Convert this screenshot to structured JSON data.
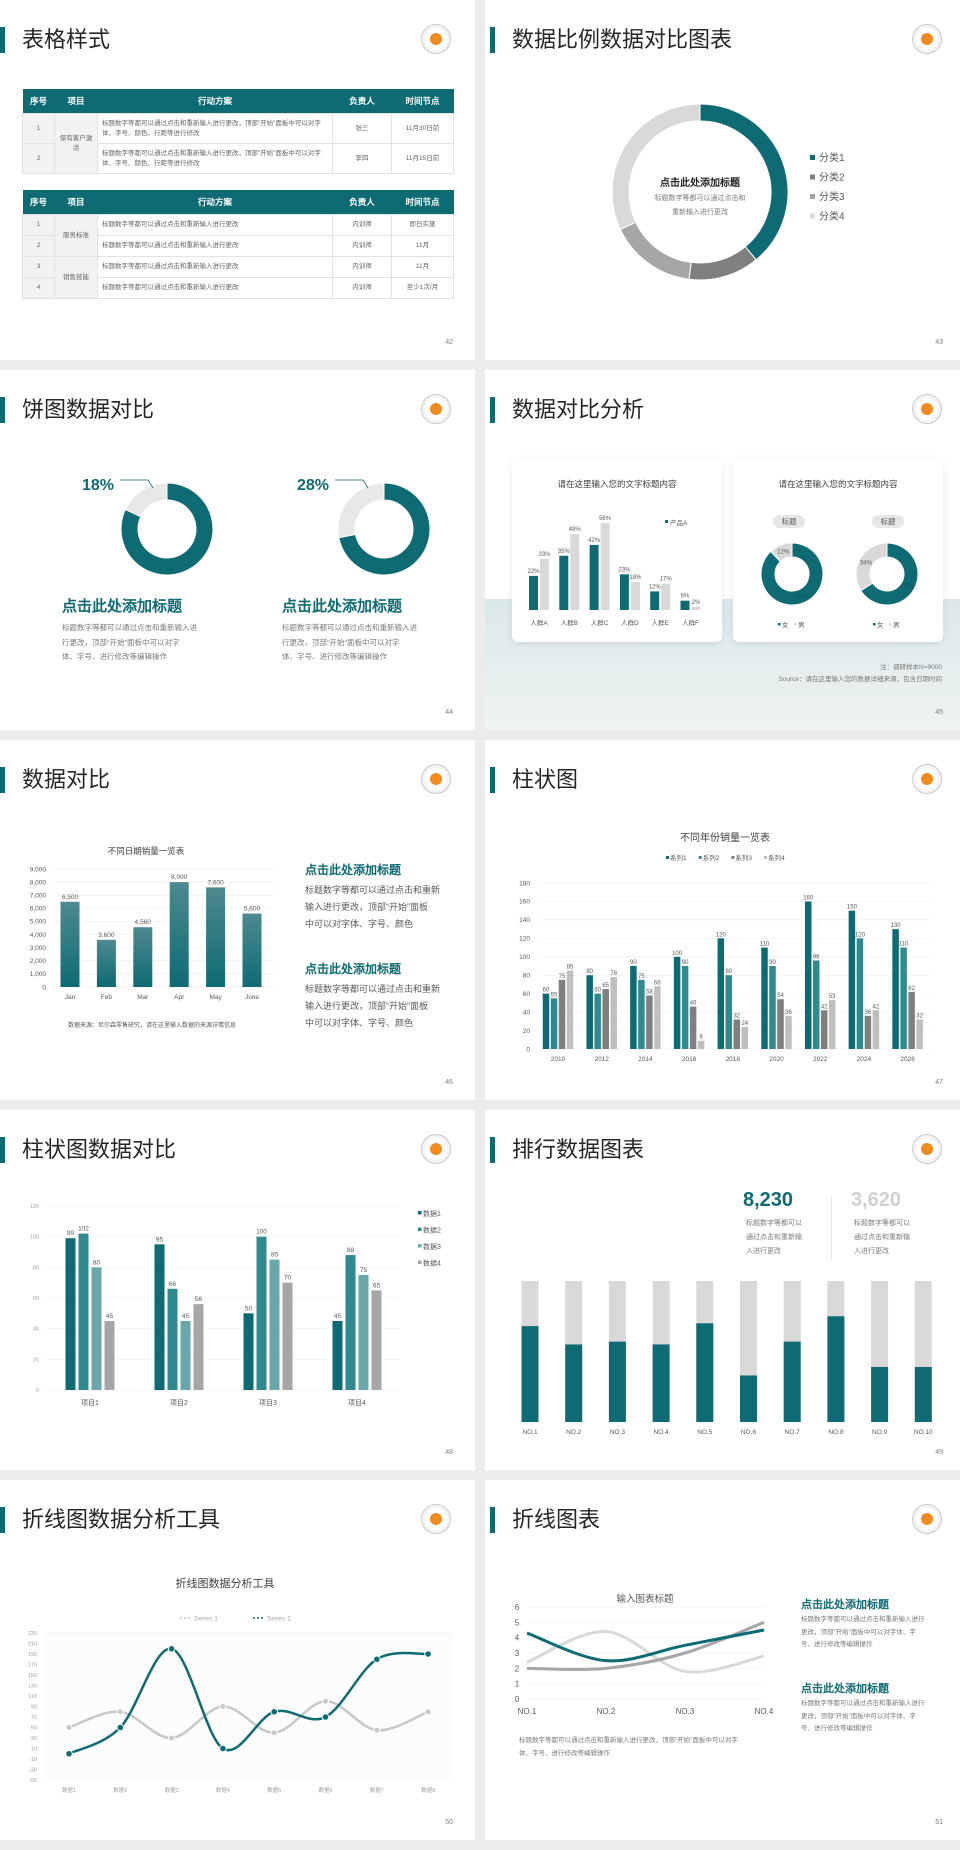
{
  "colors": {
    "teal": "#0e6b73",
    "teal2": "#2f8a90",
    "teal3": "#6aa7ab",
    "gray_dark": "#7f7f7f",
    "gray_mid": "#a6a6a6",
    "gray_light": "#d9d9d9",
    "bg": "#ececec"
  },
  "s42": {
    "title": "表格样式",
    "page": "42",
    "headers": [
      "序号",
      "项目",
      "行动方案",
      "负责人",
      "时间节点"
    ],
    "table1": {
      "group": "保有客户激活",
      "rows": [
        {
          "no": "1",
          "plan": "标题数字等都可以通过点击和重新输入进行更改，顶部“开始”面板中可以对字体、字号、颜色、行距等进行修改",
          "owner": "张三",
          "time": "11月30日前"
        },
        {
          "no": "2",
          "plan": "标题数字等都可以通过点击和重新输入进行更改，顶部“开始”面板中可以对字体、字号、颜色、行距等进行修改",
          "owner": "李四",
          "time": "11月15日前"
        }
      ]
    },
    "table2": {
      "groups": [
        "服务标准",
        "销售技能"
      ],
      "rows": [
        {
          "no": "1",
          "plan": "标题数字等都可以通过点击和重新输入进行更改",
          "owner": "内训师",
          "time": "即日实施"
        },
        {
          "no": "2",
          "plan": "标题数字等都可以通过点击和重新输入进行更改",
          "owner": "内训师",
          "time": "11月"
        },
        {
          "no": "3",
          "plan": "标题数字等都可以通过点击和重新输入进行更改",
          "owner": "内训师",
          "time": "11月"
        },
        {
          "no": "4",
          "plan": "标题数字等都可以通过点击和重新输入进行更改",
          "owner": "内训师",
          "time": "至少1次/月"
        }
      ]
    }
  },
  "s43": {
    "title": "数据比例数据对比图表",
    "page": "43",
    "center_title": "点击此处添加标题",
    "center_text": [
      "标题数字等都可以通过点击和",
      "重新输入进行更改"
    ]
  },
  "s44": {
    "title": "饼图数据对比",
    "page": "44",
    "blocks": [
      {
        "heading": "点击此处添加标题",
        "lines": [
          "标题数字等都可以通过点击和重新输入进",
          "行更改，顶部“开始”面板中可以对字",
          "体、字号、进行修改等编辑操作"
        ]
      },
      {
        "heading": "点击此处添加标题",
        "lines": [
          "标题数字等都可以通过点击和重新输入进",
          "行更改，顶部“开始”面板中可以对字",
          "体、字号、进行修改等编辑操作"
        ]
      }
    ]
  },
  "s45": {
    "title": "数据对比分析",
    "page": "45",
    "card1_title": "请在这里输入您的文字标题内容",
    "card2_title": "请在这里输入您的文字标题内容",
    "chips": [
      "标题",
      "标题"
    ],
    "note": "注：调研样本N=9000",
    "source": "Source：请在这里输入您的数据详细来源，包含日期时间"
  },
  "s46": {
    "title": "数据对比",
    "page": "46",
    "source": "数据来源：尼尔森零售研究，请在这里输入数据的来源详情信息",
    "blocks": [
      {
        "heading": "点击此处添加标题",
        "lines": [
          "标题数字等都可以通过点击和重新",
          "输入进行更改，顶部“开始”面板",
          "中可以对字体、字号、颜色"
        ]
      },
      {
        "heading": "点击此处添加标题",
        "lines": [
          "标题数字等都可以通过点击和重新",
          "输入进行更改，顶部“开始”面板",
          "中可以对字体、字号、颜色"
        ]
      }
    ]
  },
  "s47": {
    "title": "柱状图",
    "page": "47"
  },
  "s48": {
    "title": "柱状图数据对比",
    "page": "48"
  },
  "s49": {
    "title": "排行数据图表",
    "page": "49",
    "stats": [
      {
        "value": "8,230",
        "lines": [
          "标题数字等都可以",
          "通过点击和重新输",
          "入进行更改"
        ]
      },
      {
        "value": "3,620",
        "lines": [
          "标题数字等都可以",
          "通过点击和重新输",
          "入进行更改"
        ]
      }
    ]
  },
  "s50": {
    "title": "折线图数据分析工具",
    "page": "50"
  },
  "s51": {
    "title": "折线图表",
    "page": "51",
    "caption": [
      "标题数字等都可以通过点击和重新输入进行更改，顶部“开始”面板中可以对字",
      "体、字号、进行修改等编辑操作"
    ],
    "blocks": [
      {
        "heading": "点击此处添加标题",
        "lines": [
          "标题数字等都可以通过点击和重新输入进行",
          "更改，顶部“开始”面板中可以对字体、字",
          "号、进行修改等编辑操作"
        ]
      },
      {
        "heading": "点击此处添加标题",
        "lines": [
          "标题数字等都可以通过点击和重新输入进行",
          "更改，顶部“开始”面板中可以对字体、字",
          "号、进行修改等编辑操作"
        ]
      }
    ]
  },
  "chart_data": [
    {
      "id": "s43-donut",
      "type": "pie",
      "categories": [
        "分类1",
        "分类2",
        "分类3",
        "分类4"
      ],
      "values": [
        39,
        13,
        16,
        32
      ],
      "legend": "right"
    },
    {
      "id": "s44-donut-a",
      "type": "pie",
      "label": "18%",
      "values": [
        82,
        18
      ]
    },
    {
      "id": "s44-donut-b",
      "type": "pie",
      "label": "28%",
      "values": [
        72,
        28
      ]
    },
    {
      "id": "s45-bar",
      "type": "bar",
      "categories": [
        "人群A",
        "人群B",
        "人群C",
        "人群D",
        "人群E",
        "人群F"
      ],
      "series": [
        {
          "name": "产品A",
          "values": [
            22,
            35,
            42,
            23,
            12,
            6
          ]
        },
        {
          "values": [
            33,
            49,
            56,
            18,
            17,
            2
          ]
        }
      ],
      "unit": "%",
      "legend": "top-right"
    },
    {
      "id": "s45-donut-a",
      "type": "pie",
      "categories": [
        "女",
        "男"
      ],
      "values": [
        88,
        12
      ],
      "unit": "%"
    },
    {
      "id": "s45-donut-b",
      "type": "pie",
      "categories": [
        "女",
        "男"
      ],
      "values": [
        66,
        34
      ],
      "unit": "%"
    },
    {
      "id": "s46-bar",
      "type": "bar",
      "title": "不同日期销量一览表",
      "categories": [
        "Jan",
        "Feb",
        "Mar",
        "Apr",
        "May",
        "June"
      ],
      "values": [
        6500,
        3600,
        4560,
        8000,
        7600,
        5600
      ],
      "ylim": [
        0,
        9000
      ],
      "ytick": 1000,
      "grid": true
    },
    {
      "id": "s47-bar",
      "type": "bar",
      "title": "不同年份销量一览表",
      "categories": [
        "2010",
        "2012",
        "2014",
        "2016",
        "2018",
        "2020",
        "2022",
        "2024",
        "2026"
      ],
      "series": [
        {
          "name": "系列1",
          "values": [
            60,
            80,
            90,
            100,
            120,
            110,
            160,
            150,
            130
          ]
        },
        {
          "name": "系列2",
          "values": [
            55,
            60,
            75,
            90,
            80,
            90,
            96,
            120,
            110
          ]
        },
        {
          "name": "系列3",
          "values": [
            75,
            65,
            58,
            46,
            32,
            54,
            42,
            36,
            62
          ]
        },
        {
          "name": "系列4",
          "values": [
            85,
            78,
            68,
            9,
            24,
            36,
            53,
            42,
            32
          ]
        }
      ],
      "ylim": [
        0,
        180
      ],
      "ytick": 20,
      "grid": true,
      "legend": "top"
    },
    {
      "id": "s48-bar",
      "type": "bar",
      "categories": [
        "项目1",
        "项目2",
        "项目3",
        "项目4"
      ],
      "series": [
        {
          "name": "数据1",
          "values": [
            99,
            95,
            50,
            45
          ]
        },
        {
          "name": "数据2",
          "values": [
            102,
            66,
            100,
            88
          ]
        },
        {
          "name": "数据3",
          "values": [
            80,
            45,
            85,
            75
          ]
        },
        {
          "name": "数据4",
          "values": [
            45,
            56,
            70,
            65
          ]
        }
      ],
      "ylim": [
        0,
        120
      ],
      "ytick": 20,
      "grid": true,
      "legend": "right"
    },
    {
      "id": "s49-rank",
      "type": "bar",
      "categories": [
        "NO.1",
        "NO.2",
        "NO.3",
        "NO.4",
        "NO.5",
        "NO.6",
        "NO.7",
        "NO.8",
        "NO.9",
        "NO.10"
      ],
      "values": [
        68,
        55,
        57,
        55,
        70,
        33,
        57,
        75,
        39,
        39
      ],
      "ylim": [
        0,
        100
      ]
    },
    {
      "id": "s50-line",
      "type": "line",
      "title": "折线图数据分析工具",
      "categories": [
        "数据1",
        "数据2",
        "数据3",
        "数据4",
        "数据5",
        "数据6",
        "数据7",
        "数据8"
      ],
      "series": [
        {
          "name": "Series 1",
          "values": [
            50,
            80,
            30,
            90,
            40,
            100,
            45,
            80
          ]
        },
        {
          "name": "Series 2",
          "values": [
            0,
            50,
            200,
            10,
            80,
            70,
            180,
            190
          ]
        }
      ],
      "ylim": [
        -50,
        230
      ],
      "ytick": 20,
      "legend": "top"
    },
    {
      "id": "s51-line",
      "type": "line",
      "title": "输入图表标题",
      "categories": [
        "NO.1",
        "NO.2",
        "NO.3",
        "NO.4"
      ],
      "series": [
        {
          "values": [
            4.3,
            2.5,
            3.5,
            4.5
          ]
        },
        {
          "values": [
            2.4,
            4.4,
            1.8,
            2.8
          ]
        },
        {
          "values": [
            2.0,
            2.0,
            3.0,
            5.0
          ]
        }
      ],
      "ylim": [
        0,
        6
      ],
      "ytick": 1,
      "grid": true
    }
  ]
}
